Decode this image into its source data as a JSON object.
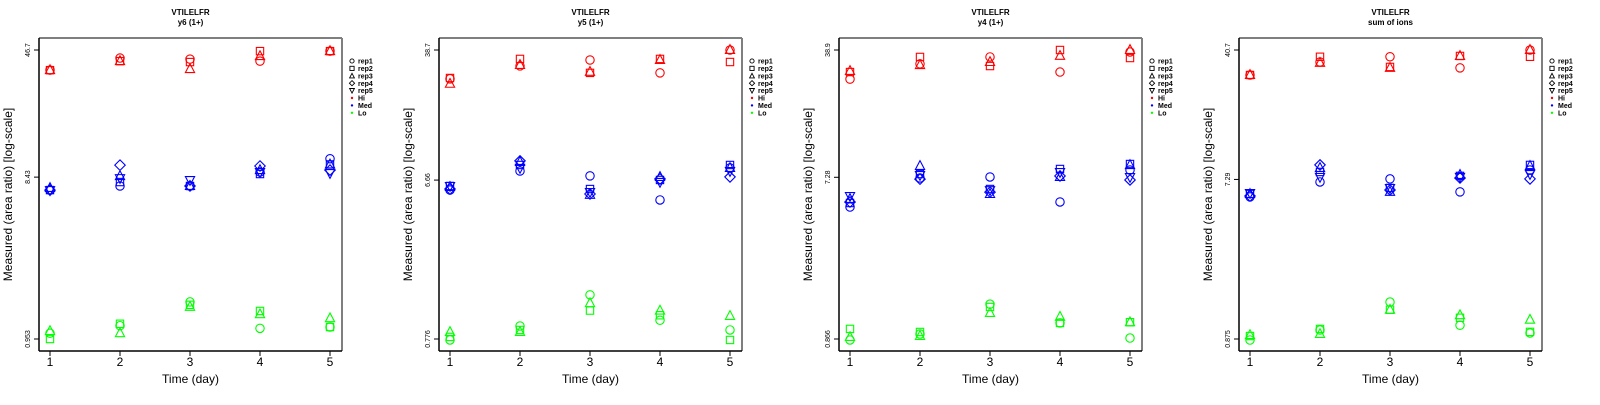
{
  "chart_data": [
    {
      "type": "scatter",
      "title": "VTILELFR",
      "subtitle": "y6 (1+)",
      "xlabel": "Time (day)",
      "ylabel": "Measured (area ratio) [log-scale]",
      "yscale": "log",
      "x_ticks": [
        "1",
        "2",
        "3",
        "4",
        "5"
      ],
      "y_ticks": [
        "46.7",
        "8.43",
        "0.953"
      ],
      "ylim": [
        0.953,
        46.7
      ],
      "grid": false,
      "legend_position": "right",
      "series": [
        {
          "name": "Hi",
          "color": "#ff0000",
          "reps": {
            "rep1": [
              35.6,
              41.9,
              41.3,
              40.2,
              46.0
            ],
            "rep2": [
              35.6,
              40.2,
              39.7,
              46.0,
              46.0
            ],
            "rep3": [
              35.6,
              40.2,
              36.1,
              43.0,
              46.0
            ]
          }
        },
        {
          "name": "Med",
          "color": "#0000ff",
          "reps": {
            "rep1": [
              7.08,
              7.48,
              7.48,
              9.03,
              10.8
            ],
            "rep2": [
              7.08,
              7.89,
              7.48,
              8.79,
              10.0
            ],
            "rep3": [
              7.28,
              8.55,
              7.48,
              9.27,
              10.0
            ],
            "rep4": [
              7.08,
              9.91,
              7.48,
              9.79,
              9.27
            ],
            "rep5": [
              7.08,
              8.32,
              8.11,
              9.03,
              8.91
            ]
          }
        },
        {
          "name": "Lo",
          "color": "#00ff00",
          "reps": {
            "rep1": [
              1.03,
              1.14,
              1.57,
              1.1,
              1.12
            ],
            "rep2": [
              0.953,
              1.17,
              1.51,
              1.39,
              1.12
            ],
            "rep3": [
              1.06,
              1.03,
              1.47,
              1.33,
              1.26
            ]
          }
        }
      ]
    },
    {
      "type": "scatter",
      "title": "VTILELFR",
      "subtitle": "y5 (1+)",
      "xlabel": "Time (day)",
      "ylabel": "Measured (area ratio) [log-scale]",
      "yscale": "log",
      "x_ticks": [
        "1",
        "2",
        "3",
        "4",
        "5"
      ],
      "y_ticks": [
        "38.7",
        "6.66",
        "0.776"
      ],
      "ylim": [
        0.776,
        38.7
      ],
      "grid": false,
      "legend_position": "right",
      "series": [
        {
          "name": "Hi",
          "color": "#ff0000",
          "reps": {
            "rep1": [
              26.2,
              31.2,
              33.8,
              28.4,
              38.7
            ],
            "rep2": [
              26.5,
              34.3,
              28.4,
              34.3,
              32.9
            ],
            "rep3": [
              24.5,
              31.6,
              28.8,
              33.8,
              38.7
            ]
          }
        },
        {
          "name": "Med",
          "color": "#0000ff",
          "reps": {
            "rep1": [
              5.82,
              7.53,
              7.05,
              5.09,
              7.85
            ],
            "rep2": [
              6.15,
              8.17,
              5.9,
              6.67,
              8.17
            ],
            "rep3": [
              6.07,
              8.51,
              5.45,
              6.95,
              7.85
            ],
            "rep4": [
              5.9,
              8.63,
              5.52,
              6.76,
              6.95
            ],
            "rep5": [
              6.15,
              7.85,
              5.67,
              6.5,
              7.53
            ]
          }
        },
        {
          "name": "Lo",
          "color": "#00ff00",
          "reps": {
            "rep1": [
              0.766,
              0.925,
              1.41,
              1.0,
              0.877
            ],
            "rep2": [
              0.798,
              0.877,
              1.14,
              1.07,
              0.766
            ],
            "rep3": [
              0.853,
              0.853,
              1.26,
              1.14,
              1.06
            ]
          }
        }
      ]
    },
    {
      "type": "scatter",
      "title": "VTILELFR",
      "subtitle": "y4 (1+)",
      "xlabel": "Time (day)",
      "ylabel": "Measured (area ratio) [log-scale]",
      "yscale": "log",
      "x_ticks": [
        "1",
        "2",
        "3",
        "4",
        "5"
      ],
      "y_ticks": [
        "38.9",
        "7.28",
        "0.866"
      ],
      "ylim": [
        0.866,
        38.9
      ],
      "grid": false,
      "legend_position": "right",
      "series": [
        {
          "name": "Hi",
          "color": "#ff0000",
          "reps": {
            "rep1": [
              26.5,
              32.4,
              35.5,
              29.1,
              37.9
            ],
            "rep2": [
              29.1,
              35.5,
              31.5,
              38.9,
              35.0
            ],
            "rep3": [
              29.5,
              31.9,
              33.2,
              36.0,
              38.9
            ]
          }
        },
        {
          "name": "Med",
          "color": "#0000ff",
          "reps": {
            "rep1": [
              4.92,
              7.21,
              7.31,
              5.26,
              8.01
            ],
            "rep2": [
              5.19,
              7.6,
              6.24,
              8.12,
              8.67
            ],
            "rep3": [
              5.47,
              8.45,
              5.84,
              7.31,
              8.55
            ],
            "rep4": [
              5.26,
              7.11,
              5.99,
              7.41,
              7.03
            ],
            "rep5": [
              5.69,
              7.5,
              6.15,
              7.8,
              7.31
            ]
          }
        },
        {
          "name": "Lo",
          "color": "#00ff00",
          "reps": {
            "rep1": [
              0.855,
              0.925,
              1.37,
              1.07,
              0.877
            ],
            "rep2": [
              0.989,
              0.95,
              1.32,
              1.07,
              1.08
            ],
            "rep3": [
              0.889,
              0.901,
              1.22,
              1.16,
              1.08
            ]
          }
        }
      ]
    },
    {
      "type": "scatter",
      "title": "VTILELFR",
      "subtitle": "sum of ions",
      "xlabel": "Time (day)",
      "ylabel": "Measured (area ratio) [log-scale]",
      "yscale": "log",
      "x_ticks": [
        "1",
        "2",
        "3",
        "4",
        "5"
      ],
      "y_ticks": [
        "40.7",
        "7.29",
        "0.875"
      ],
      "ylim": [
        0.875,
        40.7
      ],
      "grid": false,
      "legend_position": "right",
      "series": [
        {
          "name": "Hi",
          "color": "#ff0000",
          "reps": {
            "rep1": [
              29.2,
              34.7,
              37.2,
              32.1,
              40.7
            ],
            "rep2": [
              29.2,
              37.2,
              32.5,
              37.6,
              37.2
            ],
            "rep3": [
              29.2,
              34.3,
              32.1,
              37.6,
              40.7
            ]
          }
        },
        {
          "name": "Med",
          "color": "#0000ff",
          "reps": {
            "rep1": [
              5.78,
              7.05,
              7.34,
              6.18,
              8.26
            ],
            "rep2": [
              6.01,
              8.05,
              6.51,
              7.64,
              8.84
            ],
            "rep3": [
              6.01,
              8.49,
              6.18,
              7.74,
              8.72
            ],
            "rep4": [
              5.85,
              8.84,
              6.34,
              7.43,
              7.34
            ],
            "rep5": [
              6.09,
              7.54,
              6.51,
              7.54,
              7.83
            ]
          }
        },
        {
          "name": "Lo",
          "color": "#00ff00",
          "reps": {
            "rep1": [
              0.863,
              0.986,
              1.43,
              1.05,
              0.948
            ],
            "rep2": [
              0.91,
              1.0,
              1.29,
              1.16,
              0.962
            ],
            "rep3": [
              0.922,
              0.935,
              1.29,
              1.2,
              1.13
            ]
          }
        }
      ]
    }
  ],
  "legend": {
    "shapes": [
      {
        "label": "rep1",
        "icon": "circle"
      },
      {
        "label": "rep2",
        "icon": "square"
      },
      {
        "label": "rep3",
        "icon": "triangle-up"
      },
      {
        "label": "rep4",
        "icon": "diamond"
      },
      {
        "label": "rep5",
        "icon": "triangle-down"
      }
    ],
    "colors": [
      {
        "label": "Hi",
        "color": "#ff0000"
      },
      {
        "label": "Med",
        "color": "#0000ff"
      },
      {
        "label": "Lo",
        "color": "#00ff00"
      }
    ]
  },
  "rep_shapes": {
    "rep1": "circle",
    "rep2": "square",
    "rep3": "triangle-up",
    "rep4": "diamond",
    "rep5": "triangle-down"
  }
}
